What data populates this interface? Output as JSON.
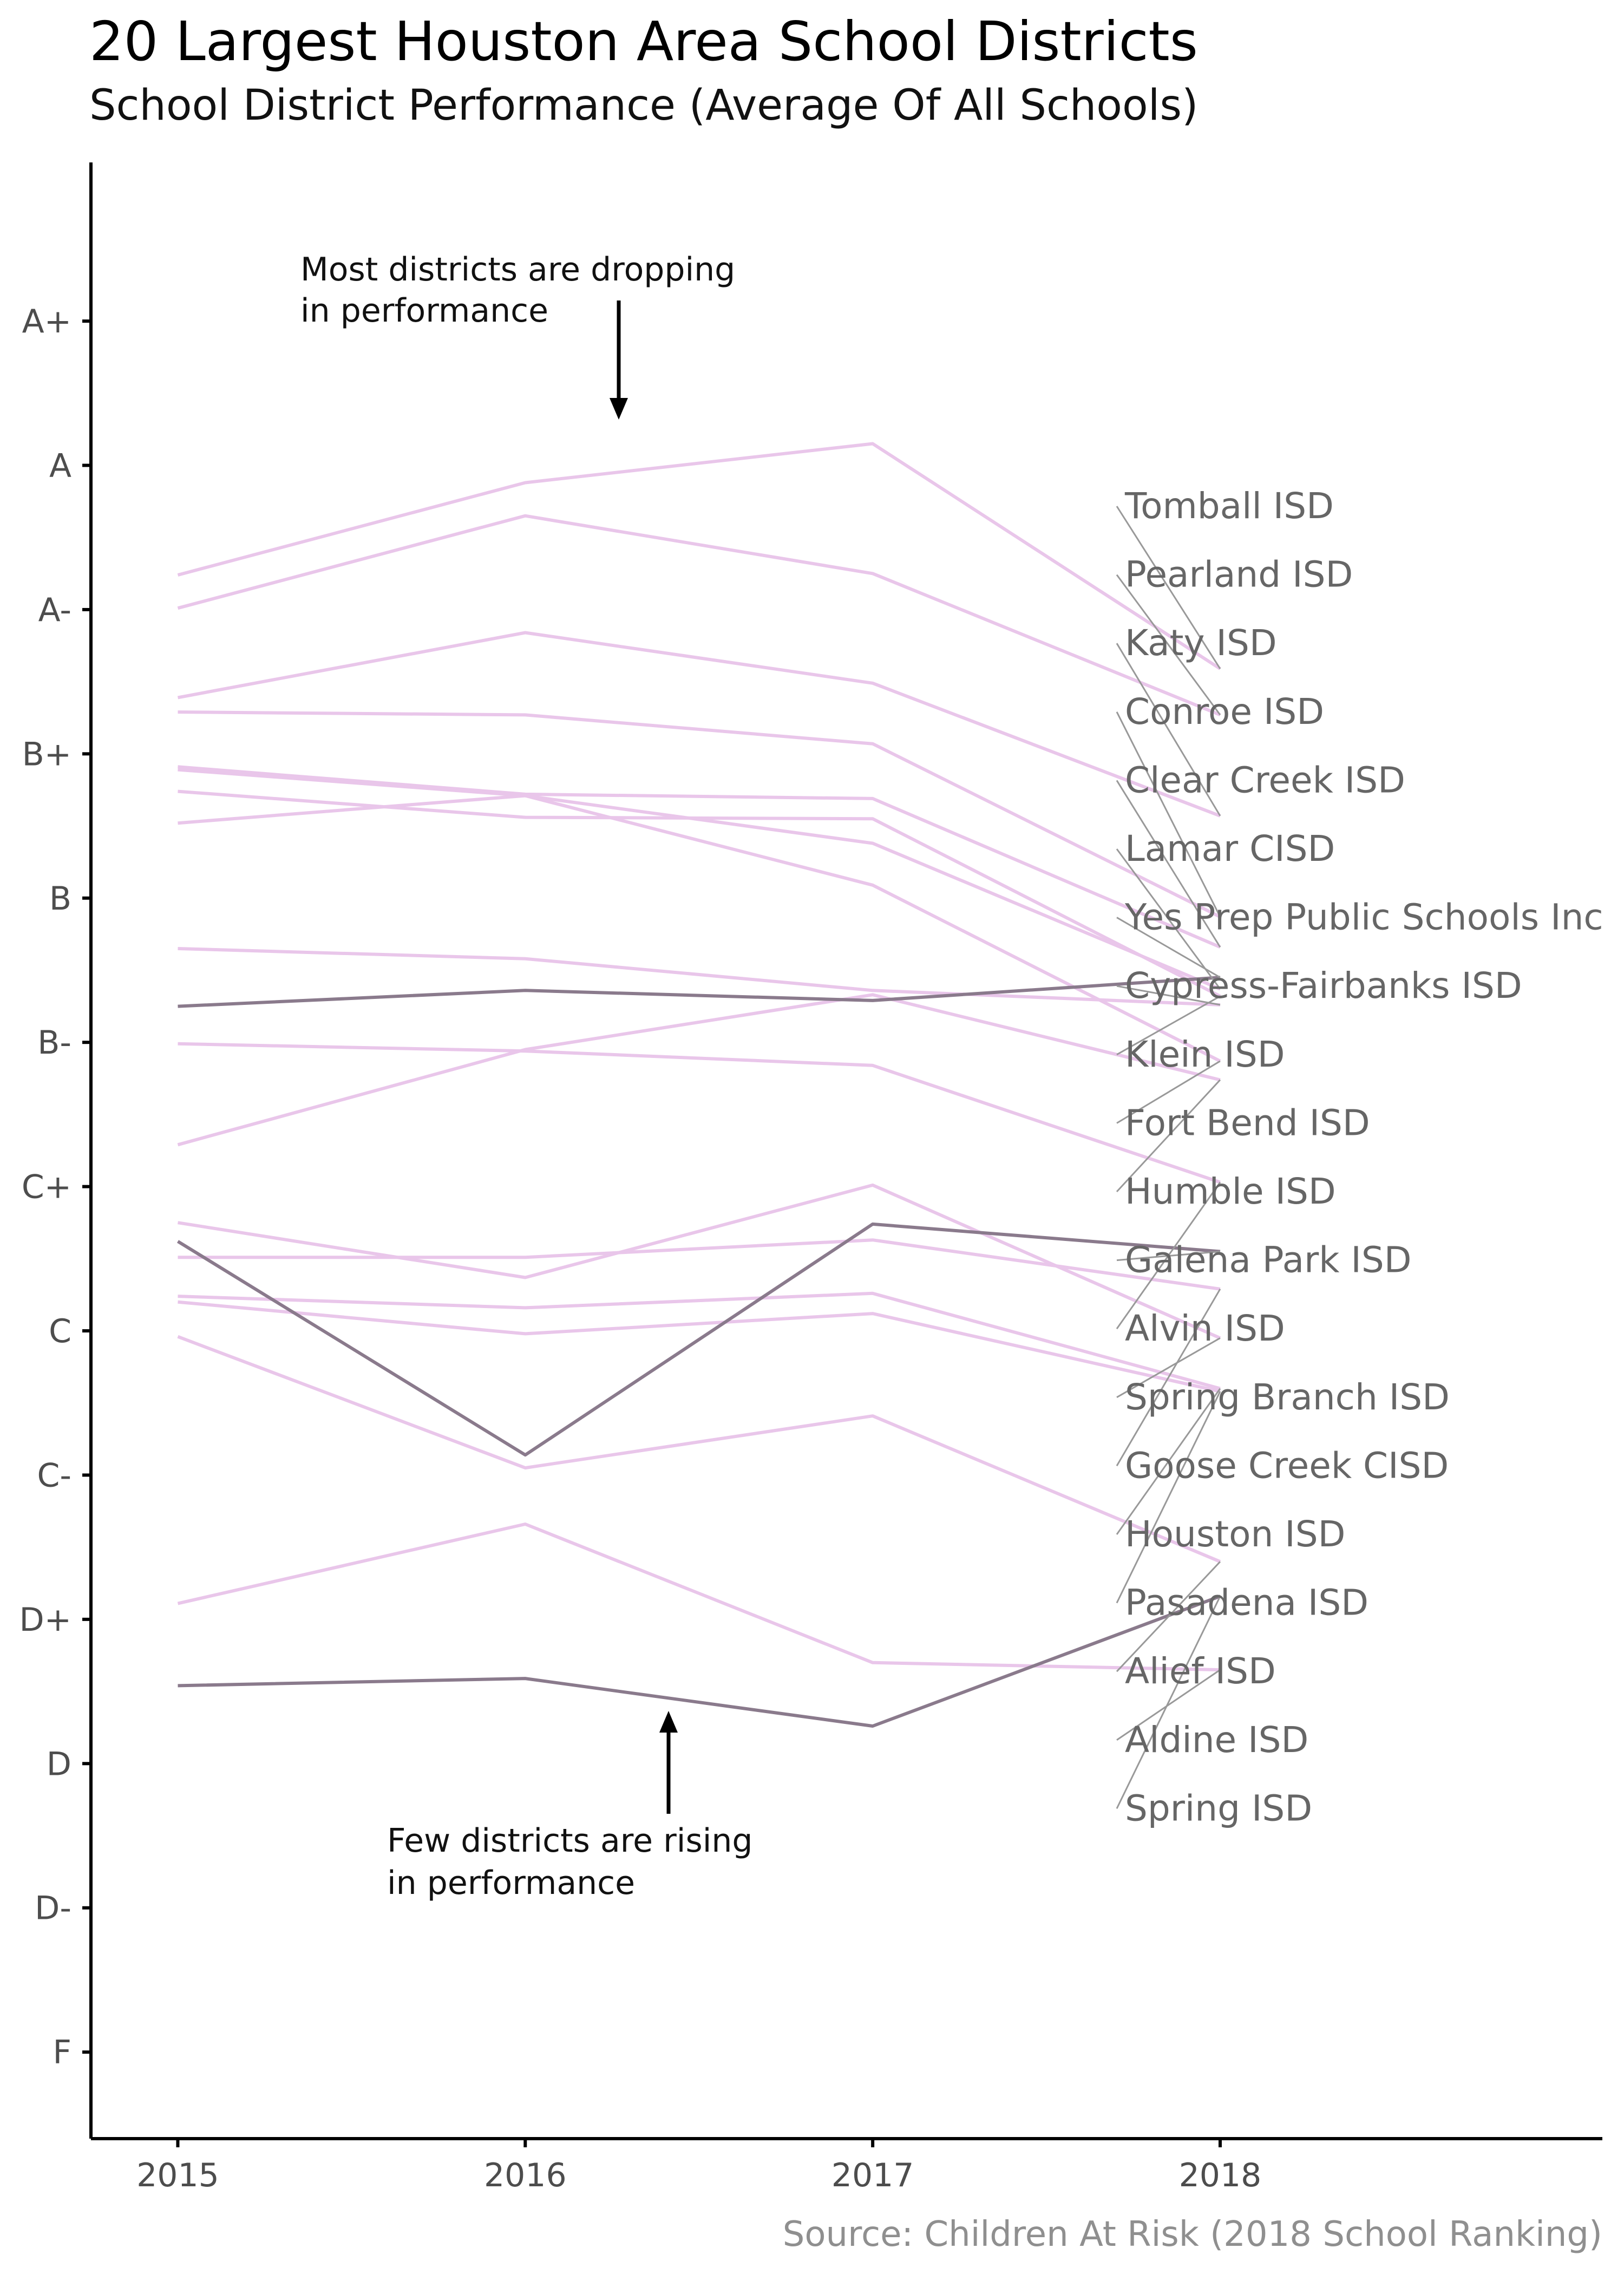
{
  "title": "20 Largest Houston Area School Districts",
  "subtitle": "School District Performance (Average Of All Schools)",
  "caption": "Source: Children At Risk (2018 School Ranking)",
  "annotations": {
    "dropping": [
      "Most districts are dropping",
      "in performance"
    ],
    "rising": [
      "Few districts are rising",
      "in performance"
    ]
  },
  "chart_data": {
    "type": "line",
    "x": [
      2015,
      2016,
      2017,
      2018
    ],
    "x_tick_labels": [
      "2015",
      "2016",
      "2017",
      "2018"
    ],
    "grade_ticks": [
      "A+",
      "A",
      "A-",
      "B+",
      "B",
      "B-",
      "C+",
      "C",
      "C-",
      "D+",
      "D",
      "D-",
      "F"
    ],
    "y_scale_note": "A+ = 12, A = 11, A- = 10, B+ = 9, B = 8, B- = 7, C+ = 6, C = 5, C- = 4, D+ = 3, D = 2, D- = 1, F = 0",
    "ylim": [
      -0.6,
      13.1
    ],
    "xlim": [
      2014.75,
      2019.1
    ],
    "colors": {
      "falling": "#e9c6ea",
      "rising": "#8a7a8c",
      "axis": "#000000",
      "leader": "#999999"
    },
    "series": [
      {
        "name": "Tomball ISD",
        "values": [
          10.24,
          10.88,
          11.15,
          9.59
        ],
        "trend": "falling"
      },
      {
        "name": "Pearland ISD",
        "values": [
          10.01,
          10.65,
          10.25,
          9.27
        ],
        "trend": "falling"
      },
      {
        "name": "Katy ISD",
        "values": [
          9.39,
          9.84,
          9.49,
          8.57
        ],
        "trend": "falling"
      },
      {
        "name": "Conroe ISD",
        "values": [
          9.29,
          9.27,
          9.07,
          7.87
        ],
        "trend": "falling"
      },
      {
        "name": "Clear Creek ISD",
        "values": [
          8.91,
          8.72,
          8.69,
          7.66
        ],
        "trend": "falling"
      },
      {
        "name": "Lamar CISD",
        "values": [
          8.52,
          8.71,
          8.38,
          7.37
        ],
        "trend": "falling"
      },
      {
        "name": "Yes Prep Public Schools Inc",
        "values": [
          7.25,
          7.36,
          7.29,
          7.45
        ],
        "trend": "rising"
      },
      {
        "name": "Cypress-Fairbanks ISD",
        "values": [
          7.65,
          7.58,
          7.36,
          7.26
        ],
        "trend": "falling"
      },
      {
        "name": "Klein ISD",
        "values": [
          8.74,
          8.56,
          8.55,
          7.32
        ],
        "trend": "falling"
      },
      {
        "name": "Fort Bend ISD",
        "values": [
          8.89,
          8.71,
          8.09,
          6.87
        ],
        "trend": "falling"
      },
      {
        "name": "Humble ISD",
        "values": [
          6.29,
          6.95,
          7.33,
          6.74
        ],
        "trend": "falling"
      },
      {
        "name": "Galena Park ISD",
        "values": [
          5.62,
          4.14,
          5.74,
          5.55
        ],
        "trend": "rising"
      },
      {
        "name": "Alvin ISD",
        "values": [
          6.99,
          6.94,
          6.84,
          6.03
        ],
        "trend": "falling"
      },
      {
        "name": "Spring Branch ISD",
        "values": [
          5.75,
          5.37,
          6.01,
          4.95
        ],
        "trend": "falling"
      },
      {
        "name": "Goose Creek CISD",
        "values": [
          5.51,
          5.51,
          5.63,
          5.29
        ],
        "trend": "falling"
      },
      {
        "name": "Houston ISD",
        "values": [
          5.24,
          5.16,
          5.26,
          4.6
        ],
        "trend": "falling"
      },
      {
        "name": "Pasadena ISD",
        "values": [
          5.2,
          4.98,
          5.12,
          4.58
        ],
        "trend": "falling"
      },
      {
        "name": "Alief ISD",
        "values": [
          4.96,
          4.05,
          4.41,
          3.4
        ],
        "trend": "falling"
      },
      {
        "name": "Aldine ISD",
        "values": [
          3.11,
          3.66,
          2.7,
          2.65
        ],
        "trend": "falling"
      },
      {
        "name": "Spring ISD",
        "values": [
          2.54,
          2.59,
          2.26,
          3.16
        ],
        "trend": "rising"
      }
    ]
  }
}
